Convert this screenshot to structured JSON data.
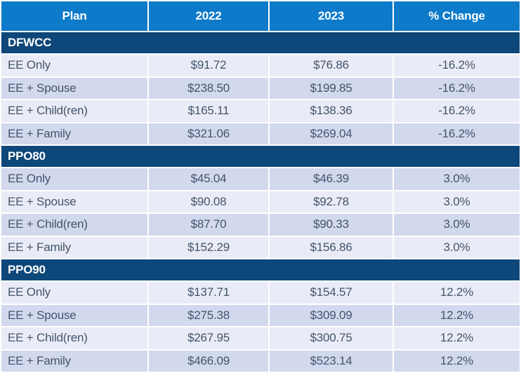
{
  "table": {
    "columns": {
      "plan": "Plan",
      "y2022": "2022",
      "y2023": "2023",
      "change": "% Change"
    },
    "sections": [
      {
        "name": "DFWCC",
        "rows": [
          {
            "plan": "EE Only",
            "y2022": "$91.72",
            "y2023": "$76.86",
            "change": "-16.2%"
          },
          {
            "plan": "EE + Spouse",
            "y2022": "$238.50",
            "y2023": "$199.85",
            "change": "-16.2%"
          },
          {
            "plan": "EE + Child(ren)",
            "y2022": "$165.11",
            "y2023": "$138.36",
            "change": "-16.2%"
          },
          {
            "plan": "EE + Family",
            "y2022": "$321.06",
            "y2023": "$269.04",
            "change": "-16.2%"
          }
        ]
      },
      {
        "name": "PPO80",
        "rows": [
          {
            "plan": "EE Only",
            "y2022": "$45.04",
            "y2023": "$46.39",
            "change": "3.0%"
          },
          {
            "plan": "EE + Spouse",
            "y2022": "$90.08",
            "y2023": "$92.78",
            "change": "3.0%"
          },
          {
            "plan": "EE + Child(ren)",
            "y2022": "$87.70",
            "y2023": "$90.33",
            "change": "3.0%"
          },
          {
            "plan": "EE + Family",
            "y2022": "$152.29",
            "y2023": "$156.86",
            "change": "3.0%"
          }
        ]
      },
      {
        "name": "PPO90",
        "rows": [
          {
            "plan": "EE Only",
            "y2022": "$137.71",
            "y2023": "$154.57",
            "change": "12.2%"
          },
          {
            "plan": "EE + Spouse",
            "y2022": "$275.38",
            "y2023": "$309.09",
            "change": "12.2%"
          },
          {
            "plan": "EE + Child(ren)",
            "y2022": "$267.95",
            "y2023": "$300.75",
            "change": "12.2%"
          },
          {
            "plan": "EE + Family",
            "y2022": "$466.09",
            "y2023": "$523.14",
            "change": "12.2%"
          }
        ]
      }
    ]
  },
  "colors": {
    "header_blue": "#0d7aca",
    "section_navy": "#0e4779",
    "row_light": "#e9ecf7",
    "row_dark": "#d2d9ee",
    "data_text": "#44546a",
    "divider_white": "#ffffff"
  }
}
